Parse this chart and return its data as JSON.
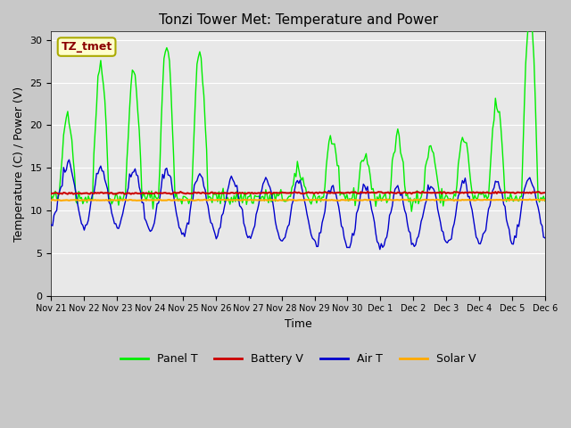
{
  "title": "Tonzi Tower Met: Temperature and Power",
  "xlabel": "Time",
  "ylabel": "Temperature (C) / Power (V)",
  "ylim": [
    0,
    31
  ],
  "yticks": [
    0,
    5,
    10,
    15,
    20,
    25,
    30
  ],
  "annotation_text": "TZ_tmet",
  "annotation_color": "#8b0000",
  "annotation_bg": "#ffffcc",
  "legend_entries": [
    "Panel T",
    "Battery V",
    "Air T",
    "Solar V"
  ],
  "legend_colors": [
    "#00ee00",
    "#cc0000",
    "#0000cc",
    "#ffaa00"
  ],
  "x_tick_labels": [
    "Nov 21",
    "Nov 22",
    "Nov 23",
    "Nov 24",
    "Nov 25",
    "Nov 26",
    "Nov 27",
    "Nov 28",
    "Nov 29",
    "Nov 30",
    "Dec 1",
    "Dec 2",
    "Dec 3",
    "Dec 4",
    "Dec 5",
    "Dec 6"
  ],
  "panel_peak_heights": [
    10,
    16,
    15,
    18,
    17,
    0,
    0,
    3,
    7,
    5,
    7,
    6,
    7,
    11,
    22,
    6
  ],
  "battery_v_base": 12.0,
  "solar_v_base": 11.2,
  "air_t_base": 12.0
}
